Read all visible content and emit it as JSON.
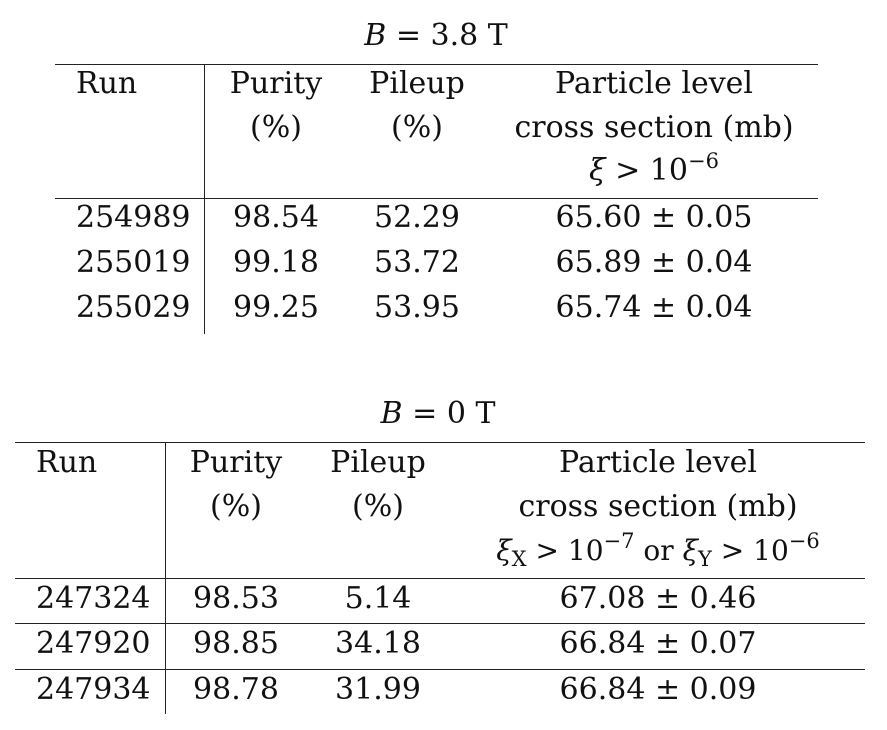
{
  "tables": [
    {
      "caption": {
        "var": "B",
        "eq": "=",
        "value": "3.8 T"
      },
      "header": {
        "run": "Run",
        "purity": [
          "Purity",
          "(%)"
        ],
        "pileup": [
          "Pileup",
          "(%)"
        ],
        "xs": [
          "Particle level",
          "cross section (mb)"
        ],
        "cut": {
          "sym": "ξ",
          "rel": ">",
          "base": "10",
          "exp": "−6"
        }
      },
      "rows": [
        {
          "run": "254989",
          "purity": "98.54",
          "pileup": "52.29",
          "xs": "65.60 ± 0.05"
        },
        {
          "run": "255019",
          "purity": "99.18",
          "pileup": "53.72",
          "xs": "65.89 ± 0.04"
        },
        {
          "run": "255029",
          "purity": "99.25",
          "pileup": "53.95",
          "xs": "65.74 ± 0.04"
        }
      ]
    },
    {
      "caption": {
        "var": "B",
        "eq": "=",
        "value": "0 T"
      },
      "header": {
        "run": "Run",
        "purity": [
          "Purity",
          "(%)"
        ],
        "pileup": [
          "Pileup",
          "(%)"
        ],
        "xs": [
          "Particle level",
          "cross section (mb)"
        ],
        "cut": {
          "sym1": "ξ",
          "sub1": "X",
          "rel1": ">",
          "base1": "10",
          "exp1": "−7",
          "or": "or",
          "sym2": "ξ",
          "sub2": "Y",
          "rel2": ">",
          "base2": "10",
          "exp2": "−6"
        }
      },
      "rows": [
        {
          "run": "247324",
          "purity": "98.53",
          "pileup": "5.14",
          "xs": "67.08 ± 0.46"
        },
        {
          "run": "247920",
          "purity": "98.85",
          "pileup": "34.18",
          "xs": "66.84 ± 0.07"
        },
        {
          "run": "247934",
          "purity": "98.78",
          "pileup": "31.99",
          "xs": "66.84 ± 0.09"
        }
      ]
    }
  ]
}
